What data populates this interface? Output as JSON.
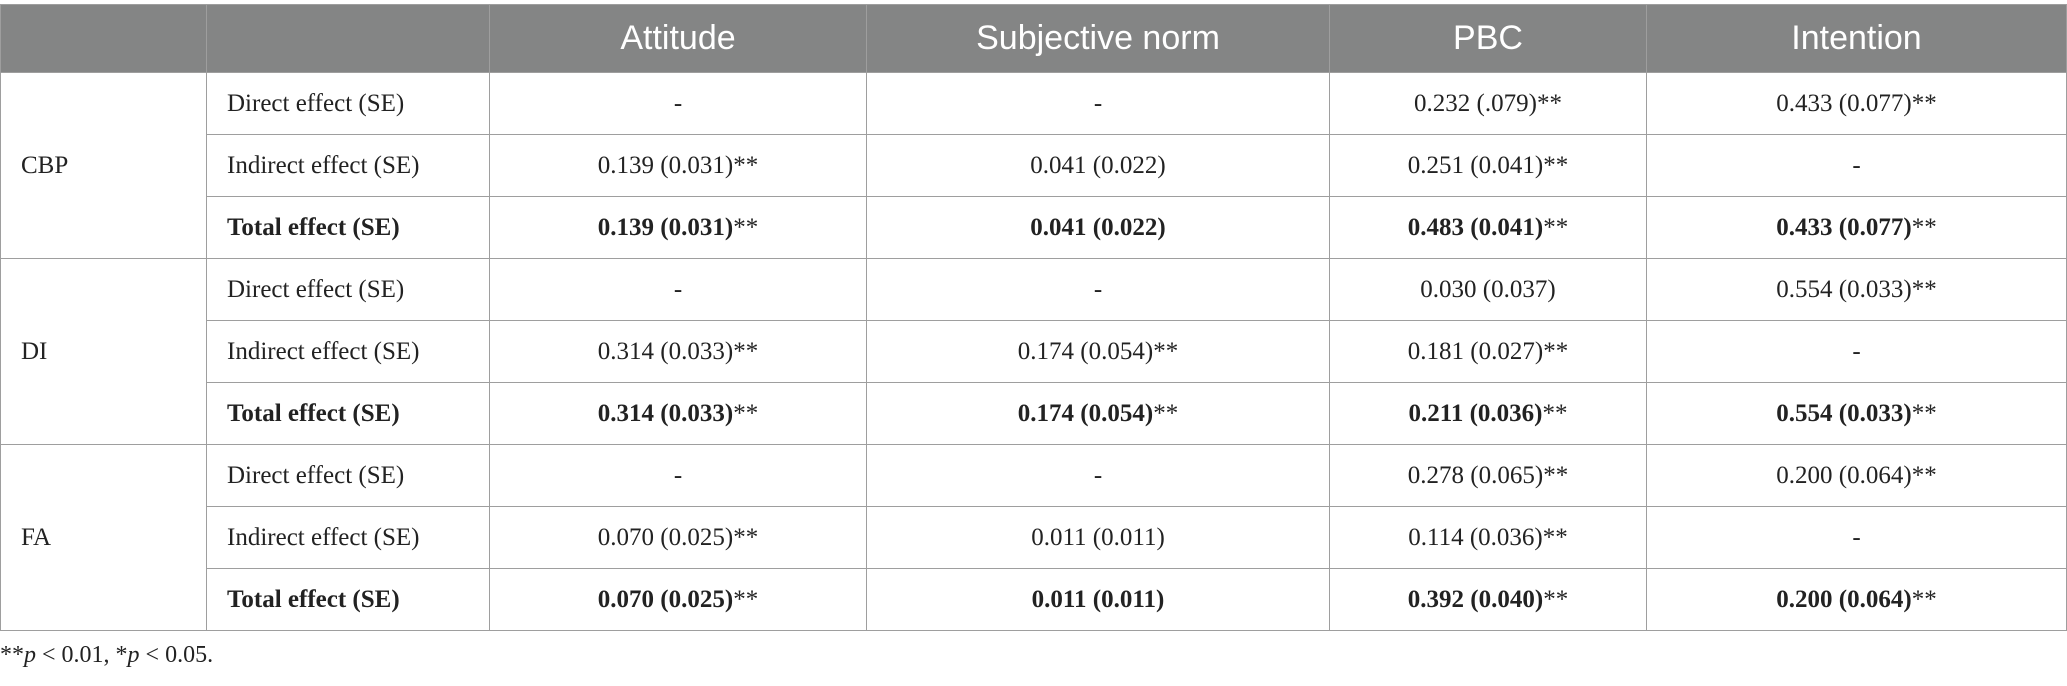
{
  "headers": [
    "",
    "",
    "Attitude",
    "Subjective norm",
    "PBC",
    "Intention"
  ],
  "groups": [
    {
      "name": "CBP",
      "rows": [
        {
          "label": "Direct effect (SE)",
          "cells": [
            {
              "v": "-",
              "s": ""
            },
            {
              "v": "-",
              "s": ""
            },
            {
              "v": "0.232 (.079)",
              "s": "**"
            },
            {
              "v": "0.433 (0.077)",
              "s": "**"
            }
          ]
        },
        {
          "label": "Indirect effect (SE)",
          "cells": [
            {
              "v": "0.139 (0.031)",
              "s": "**"
            },
            {
              "v": "0.041 (0.022)",
              "s": ""
            },
            {
              "v": "0.251 (0.041)",
              "s": "**"
            },
            {
              "v": "-",
              "s": ""
            }
          ]
        },
        {
          "label": "Total effect (SE)",
          "total": true,
          "cells": [
            {
              "v": "0.139 (0.031)",
              "s": "**"
            },
            {
              "v": "0.041 (0.022)",
              "s": ""
            },
            {
              "v": "0.483 (0.041)",
              "s": "**"
            },
            {
              "v": "0.433 (0.077)",
              "s": "**"
            }
          ]
        }
      ]
    },
    {
      "name": "DI",
      "rows": [
        {
          "label": "Direct effect (SE)",
          "cells": [
            {
              "v": "-",
              "s": ""
            },
            {
              "v": "-",
              "s": ""
            },
            {
              "v": "0.030 (0.037)",
              "s": ""
            },
            {
              "v": "0.554 (0.033)",
              "s": "**"
            }
          ]
        },
        {
          "label": "Indirect effect (SE)",
          "cells": [
            {
              "v": "0.314 (0.033)",
              "s": "**"
            },
            {
              "v": "0.174 (0.054)",
              "s": "**"
            },
            {
              "v": "0.181 (0.027)",
              "s": "**"
            },
            {
              "v": "-",
              "s": ""
            }
          ]
        },
        {
          "label": "Total effect (SE)",
          "total": true,
          "cells": [
            {
              "v": "0.314 (0.033)",
              "s": "**"
            },
            {
              "v": "0.174 (0.054)",
              "s": "**"
            },
            {
              "v": "0.211 (0.036)",
              "s": "**"
            },
            {
              "v": "0.554 (0.033)",
              "s": "**"
            }
          ]
        }
      ]
    },
    {
      "name": "FA",
      "rows": [
        {
          "label": "Direct effect (SE)",
          "cells": [
            {
              "v": "-",
              "s": ""
            },
            {
              "v": "-",
              "s": ""
            },
            {
              "v": "0.278 (0.065)",
              "s": "**"
            },
            {
              "v": "0.200 (0.064)",
              "s": "**"
            }
          ]
        },
        {
          "label": "Indirect effect (SE)",
          "cells": [
            {
              "v": "0.070 (0.025)",
              "s": "**"
            },
            {
              "v": "0.011 (0.011)",
              "s": ""
            },
            {
              "v": "0.114 (0.036)",
              "s": "**"
            },
            {
              "v": "-",
              "s": ""
            }
          ]
        },
        {
          "label": "Total effect (SE)",
          "total": true,
          "cells": [
            {
              "v": "0.070 (0.025)",
              "s": "**"
            },
            {
              "v": "0.011 (0.011)",
              "s": ""
            },
            {
              "v": "0.392 (0.040)",
              "s": "**"
            },
            {
              "v": "0.200 (0.064)",
              "s": "**"
            }
          ]
        }
      ]
    }
  ],
  "footnote": {
    "stars2": "**",
    "p1": "p",
    "text1": " < 0.01, ",
    "stars1": "*",
    "p2": "p",
    "text2": " < 0.05."
  },
  "colors": {
    "header_bg": "#848585",
    "header_text": "#ffffff",
    "border": "#9e9e9e"
  }
}
